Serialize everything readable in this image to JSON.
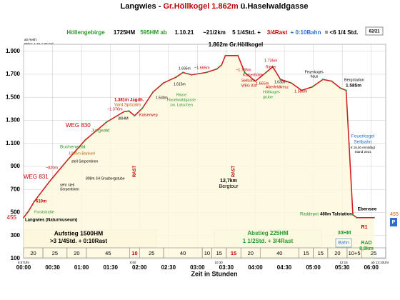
{
  "chart_data": {
    "type": "line",
    "title_parts": [
      {
        "text": "Langwies - ",
        "color": "#000000"
      },
      {
        "text": "Gr.Höllkogel 1.862m",
        "color": "#c00000"
      },
      {
        "text": " ü.Haselwaldgasse",
        "color": "#000000"
      }
    ],
    "info": [
      {
        "text": "Höllengebirge",
        "color": "#2a9a2a"
      },
      {
        "text": "1725HM",
        "color": "#000000"
      },
      {
        "text": "595HM ab",
        "color": "#2a9a2a"
      },
      {
        "text": "1.10.21",
        "color": "#000000"
      },
      {
        "text": "~21/2km",
        "color": "#000000"
      },
      {
        "text": "5 1/4Std. +",
        "color": "#000000"
      },
      {
        "text": "3/4Rast",
        "color": "#c00000"
      },
      {
        "text": "+ 0:10Bahn",
        "color": "#2a6fd0"
      },
      {
        "text": "= <6 1/4 Std.",
        "color": "#000000"
      }
    ],
    "badge": "62/21",
    "note_lines": [
      "ab Reith:",
      "96km; 1:15-1:30 Std."
    ],
    "x_label": "Zeit in Stunden",
    "xlim": [
      0,
      375
    ],
    "ylim": [
      100,
      1960
    ],
    "xticks": [
      {
        "value": 0,
        "label": "00:00"
      },
      {
        "value": 30,
        "label": "00:30"
      },
      {
        "value": 60,
        "label": "01:00"
      },
      {
        "value": 90,
        "label": "01:30"
      },
      {
        "value": 120,
        "label": "02:00"
      },
      {
        "value": 150,
        "label": "02:30"
      },
      {
        "value": 180,
        "label": "03:00"
      },
      {
        "value": 210,
        "label": "03:30"
      },
      {
        "value": 240,
        "label": "04:00"
      },
      {
        "value": 270,
        "label": "04:30"
      },
      {
        "value": 300,
        "label": "05:00"
      },
      {
        "value": 330,
        "label": "05:30"
      },
      {
        "value": 360,
        "label": "06:00"
      }
    ],
    "yticks": [
      100,
      300,
      500,
      700,
      900,
      {
        "value": 1100,
        "label": "1.100"
      },
      {
        "value": 1300,
        "label": "1.300"
      },
      {
        "value": 1500,
        "label": "1.500"
      },
      {
        "value": 1700,
        "label": "1.700"
      },
      {
        "value": 1900,
        "label": "1.900"
      }
    ],
    "grid": true,
    "series": [
      {
        "name": "Höhenprofil",
        "color": "#d02020",
        "x": [
          0,
          5,
          11,
          27,
          46,
          64,
          86,
          104,
          109,
          115,
          123,
          134,
          145,
          158,
          165,
          174,
          189,
          200,
          205,
          209,
          222,
          229,
          240,
          251,
          258,
          266,
          277,
          288,
          299,
          310,
          319,
          328,
          334,
          337,
          341,
          345,
          363
        ],
        "values": [
          455,
          510,
          595,
          770,
          960,
          1130,
          1285,
          1375,
          1381,
          1340,
          1405,
          1545,
          1625,
          1675,
          1715,
          1695,
          1715,
          1745,
          1780,
          1862,
          1862,
          1715,
          1640,
          1715,
          1765,
          1655,
          1625,
          1560,
          1590,
          1655,
          1640,
          1580,
          1560,
          1100,
          480,
          455,
          455
        ]
      }
    ],
    "segments": {
      "values": [
        20,
        25,
        20,
        45,
        10,
        25,
        40,
        10,
        15,
        15,
        20,
        40,
        15,
        15,
        20,
        15,
        25
      ],
      "value_labels": [
        "20",
        "25",
        "20",
        "45",
        "10",
        "25",
        "40",
        "10",
        "15",
        "15",
        "20",
        "40",
        "15",
        "15",
        "20",
        "10+5",
        "25"
      ],
      "colors": [
        "#000000",
        "#000000",
        "#000000",
        "#000000",
        "#c00000",
        "#000000",
        "#000000",
        "#000000",
        "#000000",
        "#c00000",
        "#000000",
        "#000000",
        "#000000",
        "#000000",
        "#000000",
        "#000000",
        "#000000"
      ],
      "rest_label": "RAST"
    },
    "annotations": [
      {
        "text": "Langwies (Naturmuseum)",
        "color": "#000000"
      },
      {
        "text": "Forststraße",
        "color": "#2a9a2a"
      },
      {
        "text": "610m",
        "color": "#c00000"
      },
      {
        "text": "WEG 831",
        "color": "#c00000"
      },
      {
        "text": "sehr steil",
        "color": "#000000"
      },
      {
        "text": "Serpentinen",
        "color": "#000000"
      },
      {
        "text": "808m JH Grasbergstube",
        "color": "#000000"
      },
      {
        "text": "~820m",
        "color": "#c00000"
      },
      {
        "text": "Buchenwald",
        "color": "#2a9a2a"
      },
      {
        "text": "1000m Bankerl",
        "color": "#c06000"
      },
      {
        "text": "steil Serpentinen",
        "color": "#000000"
      },
      {
        "text": "WEG 830",
        "color": "#c00000"
      },
      {
        "text": "Jungwald",
        "color": "#2a9a2a"
      },
      {
        "text": "1.381m Jagdh.",
        "color": "#c00000"
      },
      {
        "text": "Vord.Spitzalm",
        "color": "#c06000"
      },
      {
        "text": "~1.370m",
        "color": "#c00000"
      },
      {
        "text": "Kaiserweg",
        "color": "#c00000"
      },
      {
        "text": "30HM",
        "color": "#000000"
      },
      {
        "text": "1.530m",
        "color": "#000000"
      },
      {
        "text": "Rinne",
        "color": "#2a9a2a"
      },
      {
        "text": "Haselwaldgasse",
        "color": "#2a9a2a"
      },
      {
        "text": "zw. Latschen",
        "color": "#2a9a2a"
      },
      {
        "text": "1.695m",
        "color": "#000000"
      },
      {
        "text": "1.615m",
        "color": "#000000"
      },
      {
        "text": "~1.665m",
        "color": "#c00000"
      },
      {
        "text": "~1.785m",
        "color": "#c00000"
      },
      {
        "text": "Kaiserhütte",
        "color": "#c00000"
      },
      {
        "text": "Seilbahn",
        "color": "#c00000"
      },
      {
        "text": "WEG 830",
        "color": "#c00000"
      },
      {
        "text": "1.862m Gr.Höllkogel",
        "color": "#000000"
      },
      {
        "text": "12,7km",
        "color": "#000000"
      },
      {
        "text": "Bergtour",
        "color": "#000000"
      },
      {
        "text": "1.735m",
        "color": "#c00000"
      },
      {
        "text": "Rieder",
        "color": "#c00000"
      },
      {
        "text": "Alberfeldkreuz",
        "color": "#c00000"
      },
      {
        "text": "1.630m",
        "color": "#000000"
      },
      {
        "text": "1.665m",
        "color": "#c00000"
      },
      {
        "text": "Höllkogel-",
        "color": "#2a9a2a"
      },
      {
        "text": "grube",
        "color": "#2a9a2a"
      },
      {
        "text": "1.585m",
        "color": "#c00000"
      },
      {
        "text": "Feuerkogel-",
        "color": "#000000"
      },
      {
        "text": "haus",
        "color": "#000000"
      },
      {
        "text": "Bergstation",
        "color": "#000000"
      },
      {
        "text": "1.585m",
        "color": "#000000"
      },
      {
        "text": "Feuerkogel",
        "color": "#2a6fd0"
      },
      {
        "text": "Seilbahn",
        "color": "#2a6fd0"
      },
      {
        "text": "€ 16,50 ermäßigt",
        "color": "#000000"
      },
      {
        "text": "Stand 2021",
        "color": "#000000"
      },
      {
        "text": "Raddepot",
        "color": "#2a9a2a"
      },
      {
        "text": "480m Talstation",
        "color": "#000000"
      },
      {
        "text": "Ebensee",
        "color": "#000000"
      },
      {
        "text": "R1",
        "color": "#c00000"
      },
      {
        "text": "455",
        "color": "#c00000"
      },
      {
        "text": "455",
        "color": "#c06000"
      },
      {
        "text": "P",
        "color": "#ffffff"
      },
      {
        "text": "Aufstieg 1500HM",
        "color": "#000000"
      },
      {
        "text": ">3 1/4Std. + 0:10Rast",
        "color": "#000000"
      },
      {
        "text": "Abstieg 225HM",
        "color": "#2a9a2a"
      },
      {
        "text": "1 1/2Std. + 3/4Rast",
        "color": "#2a9a2a"
      },
      {
        "text": "30HM",
        "color": "#2a9a2a"
      },
      {
        "text": "Bahn",
        "color": "#2a6fd0"
      },
      {
        "text": "RAD",
        "color": "#2a9a2a"
      },
      {
        "text": "8,8km",
        "color": "#2a9a2a"
      },
      {
        "text": "8:50",
        "color": "#000000"
      },
      {
        "text": "10:30",
        "color": "#000000"
      },
      {
        "text": "12:15",
        "color": "#000000"
      },
      {
        "text": "ab 13:10Uhr",
        "color": "#000000"
      },
      {
        "text": "6:57Uhr",
        "color": "#000000"
      }
    ]
  }
}
